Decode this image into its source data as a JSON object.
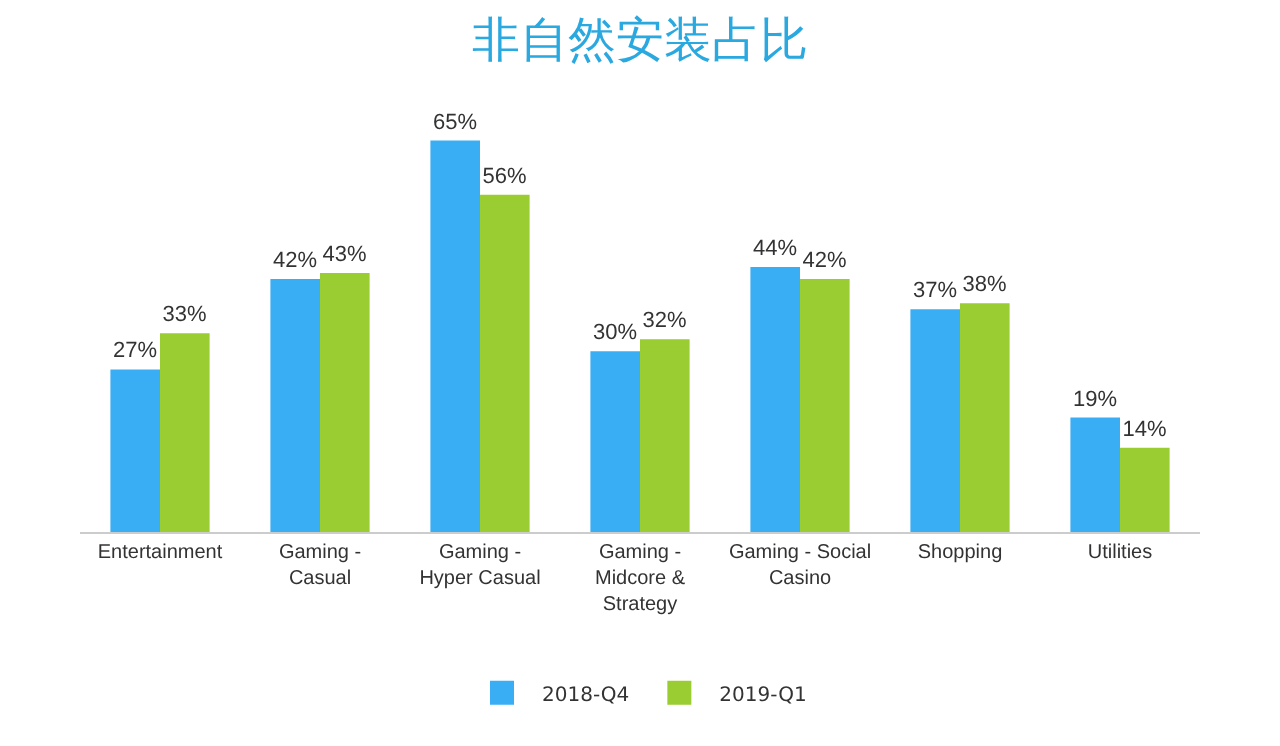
{
  "chart_data": {
    "type": "bar",
    "title": "非自然安装占比",
    "categories": [
      "Entertainment",
      "Gaming -\nCasual",
      "Gaming -\nHyper Casual",
      "Gaming -\nMidcore &\nStrategy",
      "Gaming - Social\nCasino",
      "Shopping",
      "Utilities"
    ],
    "series": [
      {
        "name": "2018-Q4",
        "color": "#3aaef4",
        "values": [
          27,
          42,
          65,
          30,
          44,
          37,
          19
        ],
        "value_labels": [
          "27%",
          "42%",
          "65%",
          "30%",
          "44%",
          "37%",
          "19%"
        ]
      },
      {
        "name": "2019-Q1",
        "color": "#9acd32",
        "values": [
          33,
          43,
          56,
          32,
          42,
          38,
          14
        ],
        "value_labels": [
          "33%",
          "43%",
          "56%",
          "32%",
          "42%",
          "38%",
          "14%"
        ]
      }
    ],
    "legend": "bottom"
  }
}
